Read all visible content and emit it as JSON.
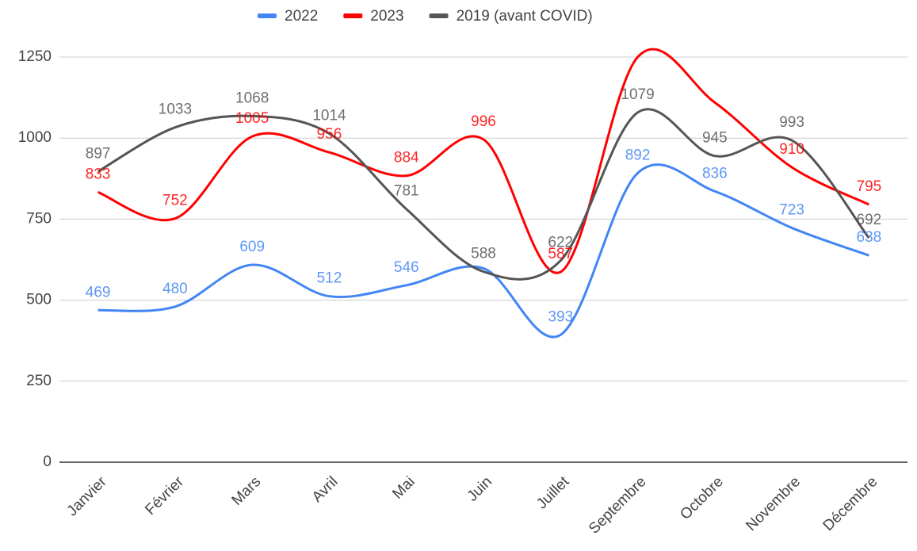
{
  "chart_data": {
    "type": "line",
    "categories": [
      "Janvier",
      "Février",
      "Mars",
      "Avril",
      "Mai",
      "Juin",
      "Juillet",
      "Septembre",
      "Octobre",
      "Novembre",
      "Décembre"
    ],
    "series": [
      {
        "name": "2022",
        "color": "#4285f4",
        "values": [
          469,
          480,
          609,
          512,
          546,
          598,
          393,
          892,
          836,
          723,
          638
        ],
        "value_labels": [
          "469",
          "480",
          "609",
          "512",
          "546",
          null,
          "393",
          "892",
          "836",
          "723",
          "638"
        ]
      },
      {
        "name": "2023",
        "color": "#ff0000",
        "values": [
          833,
          752,
          1005,
          956,
          884,
          996,
          587,
          1250,
          1110,
          910,
          795
        ],
        "value_labels": [
          "833",
          "752",
          "1005",
          "956",
          "884",
          "996",
          "587",
          null,
          null,
          "910",
          "795"
        ]
      },
      {
        "name": "2019 (avant COVID)",
        "color": "#555555",
        "values": [
          897,
          1033,
          1068,
          1014,
          781,
          588,
          622,
          1079,
          945,
          993,
          692
        ],
        "value_labels": [
          "897",
          "1033",
          "1068",
          "1014",
          "781",
          "588",
          "622",
          "1079",
          "945",
          "993",
          "692"
        ]
      }
    ],
    "ylim": [
      0,
      1250
    ],
    "yticks": [
      0,
      250,
      500,
      750,
      1000,
      1250
    ],
    "grid": true,
    "legend": "top"
  }
}
